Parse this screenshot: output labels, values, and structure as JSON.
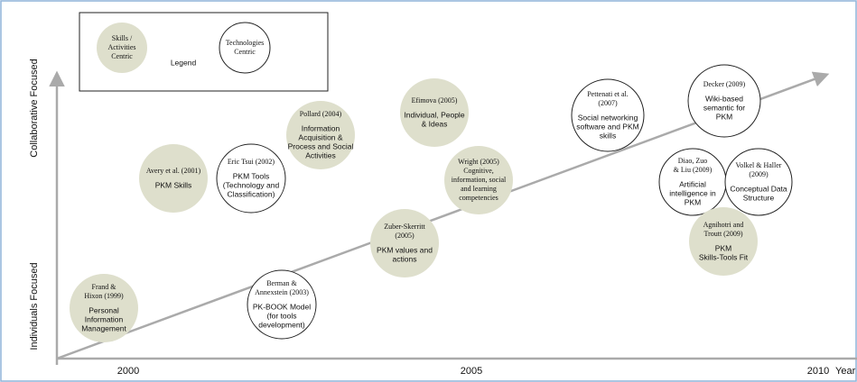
{
  "legend": {
    "title": "Legend",
    "skills": [
      "Skills /",
      "Activities",
      "Centric"
    ],
    "technologies": [
      "Technologies",
      "Centric"
    ]
  },
  "axes": {
    "y_top": "Collaborative Focused",
    "y_bottom": "Individuals Focused",
    "x_labels": [
      "2000",
      "2005",
      "2010"
    ],
    "x_title": "Year"
  },
  "nodes": [
    {
      "filled": true,
      "title": [
        "Frand &",
        "Hixon  (1999)"
      ],
      "body": [
        "Personal",
        "Information",
        "Management"
      ]
    },
    {
      "filled": true,
      "title": [
        "Avery et al. (2001)"
      ],
      "body": [
        "PKM Skills"
      ]
    },
    {
      "filled": false,
      "title": [
        "Eric Tsui (2002)"
      ],
      "body": [
        "PKM Tools",
        "(Technology and",
        "Classification)"
      ]
    },
    {
      "filled": true,
      "title": [
        "Pollard (2004)"
      ],
      "body": [
        "Information",
        "Acquisition &",
        "Process and  Social",
        "Activities"
      ]
    },
    {
      "filled": false,
      "title": [
        "Berman &",
        "Annexstein (2003)"
      ],
      "body": [
        "PK-BOOK Model",
        "(for tools",
        "development)"
      ]
    },
    {
      "filled": true,
      "title": [
        "Efimova (2005)"
      ],
      "body": [
        "Individual, People",
        "& Ideas"
      ]
    },
    {
      "filled": true,
      "title": [
        "Zuber-Skerritt",
        "(2005)"
      ],
      "body": [
        "PKM values and",
        "actions"
      ]
    },
    {
      "filled": true,
      "title": [
        "Wright (2005)",
        "Cognitive,",
        "information, social",
        "and learning",
        "competencies"
      ],
      "body": []
    },
    {
      "filled": false,
      "title": [
        "Pettenati et al.",
        "(2007)"
      ],
      "body": [
        "Social networking",
        "software and PKM",
        "skills"
      ]
    },
    {
      "filled": false,
      "title": [
        "Decker (2009)"
      ],
      "body": [
        "Wiki-based",
        "semantic for",
        "PKM"
      ]
    },
    {
      "filled": false,
      "title": [
        "Diao, Zuo",
        "& Liu (2009)"
      ],
      "body": [
        "Artificial",
        "intelligence in",
        "PKM"
      ]
    },
    {
      "filled": false,
      "title": [
        "Volkel & Haller",
        "(2009)"
      ],
      "body": [
        "Conceptual Data",
        "Structure"
      ]
    },
    {
      "filled": true,
      "title": [
        "Agnihotri and",
        "Troutt (2009)"
      ],
      "body": [
        "PKM",
        "Skills-Tools Fit"
      ]
    }
  ]
}
